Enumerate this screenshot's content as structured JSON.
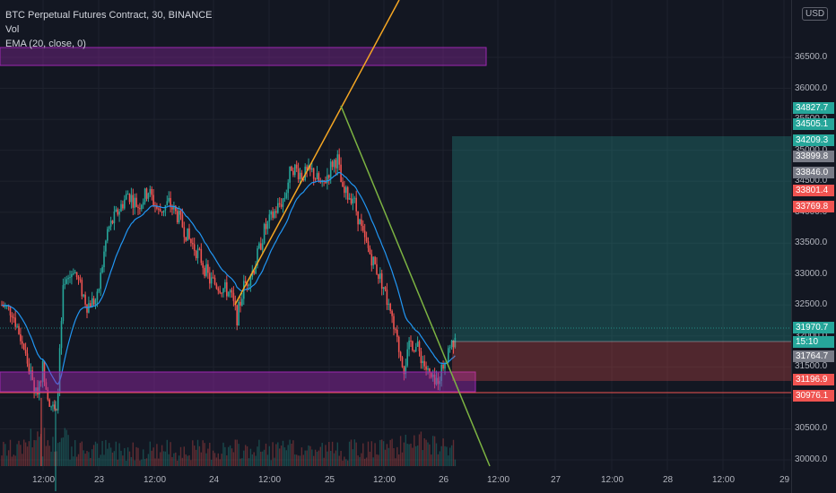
{
  "header": {
    "symbol_title": "BTC Perpetual Futures Contract, 30, BINANCE",
    "indicator_vol": "Vol",
    "indicator_ema": "EMA (20, close, 0)"
  },
  "currency_button": "USD",
  "price_axis": {
    "ticks": [
      "36500.0",
      "36000.0",
      "35500.0",
      "35000.0",
      "34500.0",
      "34000.0",
      "33500.0",
      "33000.0",
      "32500.0",
      "32000.0",
      "31500.0",
      "31000.0",
      "30500.0",
      "30000.0"
    ],
    "tags": [
      {
        "text": "34827.7",
        "color": "#26a69a"
      },
      {
        "text": "34505.1",
        "color": "#26a69a"
      },
      {
        "text": "34209.3",
        "color": "#26a69a"
      },
      {
        "text": "33899.8",
        "color": "#787b86"
      },
      {
        "text": "33846.0",
        "color": "#787b86"
      },
      {
        "text": "33801.4",
        "color": "#ef5350"
      },
      {
        "text": "33769.8",
        "color": "#ef5350"
      },
      {
        "text": "31970.7",
        "color": "#26a69a"
      },
      {
        "text": "15:10",
        "color": "#26a69a"
      },
      {
        "text": "31764.7",
        "color": "#787b86"
      },
      {
        "text": "31196.9",
        "color": "#ef5350"
      },
      {
        "text": "30976.1",
        "color": "#ef5350"
      }
    ]
  },
  "time_axis": [
    "12:00",
    "23",
    "12:00",
    "24",
    "12:00",
    "25",
    "12:00",
    "26",
    "12:00",
    "27",
    "12:00",
    "28",
    "12:00",
    "29"
  ],
  "colors": {
    "background": "#131722",
    "up": "#26a69a",
    "down": "#ef5350",
    "ema": "#2196f3",
    "zone": "#9c27b0",
    "trend_up": "#f5a623",
    "trend_down": "#7cb342"
  }
}
